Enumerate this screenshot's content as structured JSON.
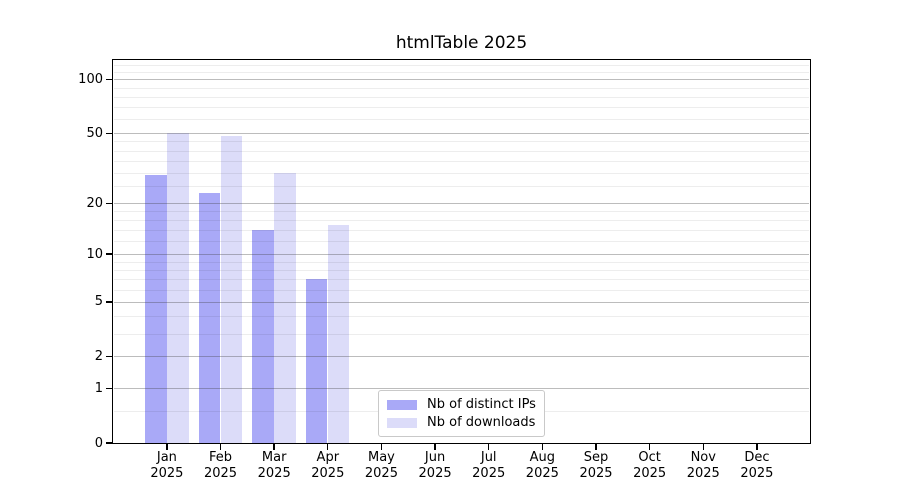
{
  "title": "htmlTable 2025",
  "legend": {
    "items": [
      {
        "label": "Nb of distinct IPs",
        "color": "#a9a9f7"
      },
      {
        "label": "Nb of downloads",
        "color": "#dcdcf9"
      }
    ]
  },
  "chart_data": {
    "type": "bar",
    "title": "htmlTable 2025",
    "categories": [
      "Jan",
      "Feb",
      "Mar",
      "Apr",
      "May",
      "Jun",
      "Jul",
      "Aug",
      "Sep",
      "Oct",
      "Nov",
      "Dec"
    ],
    "year_label": "2025",
    "series": [
      {
        "name": "Nb of distinct IPs",
        "color": "#a9a9f7",
        "values": [
          29,
          23,
          14,
          7,
          0,
          0,
          0,
          0,
          0,
          0,
          0,
          0
        ]
      },
      {
        "name": "Nb of downloads",
        "color": "#dcdcf9",
        "values": [
          50,
          48,
          30,
          15,
          0,
          0,
          0,
          0,
          0,
          0,
          0,
          0
        ]
      }
    ],
    "xlabel": "",
    "ylabel": "",
    "y_axis": {
      "scale": "log1p",
      "major_ticks": [
        0,
        1,
        2,
        5,
        10,
        20,
        50,
        100
      ],
      "minor_ticks": [
        0.5,
        3,
        4,
        6,
        7,
        8,
        9,
        12,
        14,
        16,
        18,
        25,
        30,
        35,
        40,
        45,
        60,
        70,
        80,
        90,
        110,
        120
      ],
      "ylim": [
        0,
        128
      ]
    },
    "grid": true,
    "grid_major_color": "rgba(64,64,64,0.35)",
    "grid_minor_color": "rgba(0,0,0,0.07)",
    "legend_position": "bottom-center"
  }
}
